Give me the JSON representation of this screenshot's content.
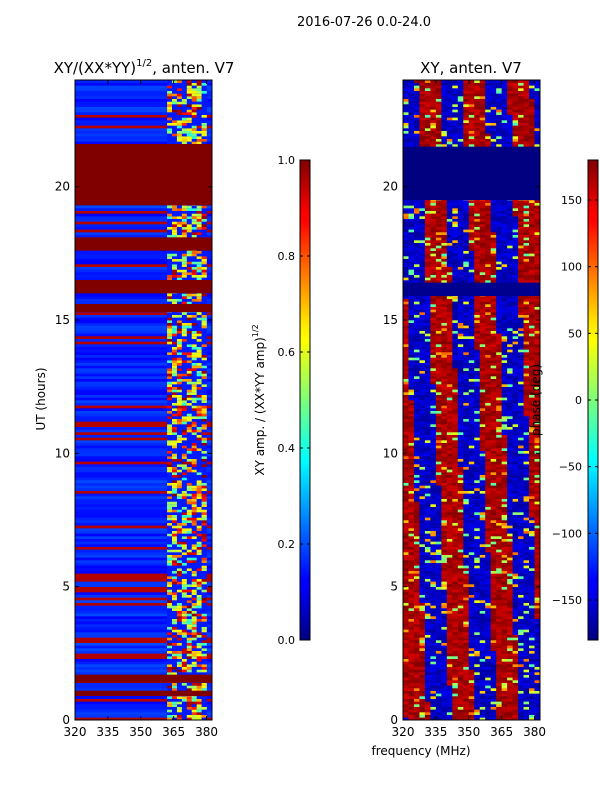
{
  "figure": {
    "suptitle": "2016-07-26 0.0-24.0",
    "shared_xlabel": "frequency (MHz)"
  },
  "chart_data": [
    {
      "type": "heatmap",
      "id": "amp",
      "title_main": "XY/(XX*YY)",
      "title_sup": "1/2",
      "title_tail": ", anten. V7",
      "xlabel": "",
      "ylabel": "UT (hours)",
      "xlim": [
        320,
        382.5
      ],
      "ylim": [
        0,
        24
      ],
      "xticks": [
        320,
        335,
        350,
        365,
        380
      ],
      "yticks": [
        0,
        5,
        10,
        15,
        20
      ],
      "colorbar": {
        "label_main": "XY amp. / (XX*YY amp)",
        "label_sup": "1/2",
        "range": [
          0.0,
          1.0
        ],
        "ticks": [
          "0.0",
          "0.2",
          "0.4",
          "0.6",
          "0.8",
          "1.0"
        ],
        "tick_values": [
          0.0,
          0.2,
          0.4,
          0.6,
          0.8,
          1.0
        ]
      },
      "uniform_bands": [
        {
          "t0": 19.3,
          "t1": 21.6,
          "value": 1.0
        },
        {
          "t0": 17.6,
          "t1": 18.1,
          "value": 1.0
        },
        {
          "t0": 16.0,
          "t1": 16.5,
          "value": 1.0
        },
        {
          "t0": 15.3,
          "t1": 15.6,
          "value": 1.0
        },
        {
          "t0": 0.9,
          "t1": 1.1,
          "value": 1.0
        },
        {
          "t0": 1.4,
          "t1": 1.7,
          "value": 1.0
        }
      ],
      "active_freq_range": [
        362,
        380
      ],
      "background_value": 0.15
    },
    {
      "type": "heatmap",
      "id": "phase",
      "title_main": "XY, anten. V7",
      "xlabel": "",
      "ylabel": "",
      "xlim": [
        320,
        382.5
      ],
      "ylim": [
        0,
        24
      ],
      "xticks": [
        320,
        335,
        350,
        365,
        380
      ],
      "yticks": [
        0,
        5,
        10,
        15,
        20
      ],
      "colorbar": {
        "label_main": "phase (deg)",
        "range": [
          -180,
          180
        ],
        "ticks": [
          "150",
          "100",
          "50",
          "0",
          "−50",
          "−100",
          "−150"
        ],
        "tick_values": [
          150,
          100,
          50,
          0,
          -50,
          -100,
          -150
        ]
      },
      "uniform_bands": [
        {
          "t0": 19.5,
          "t1": 21.5,
          "value": -180
        },
        {
          "t0": 15.9,
          "t1": 16.4,
          "value": -175
        }
      ],
      "background_value": 160
    }
  ]
}
